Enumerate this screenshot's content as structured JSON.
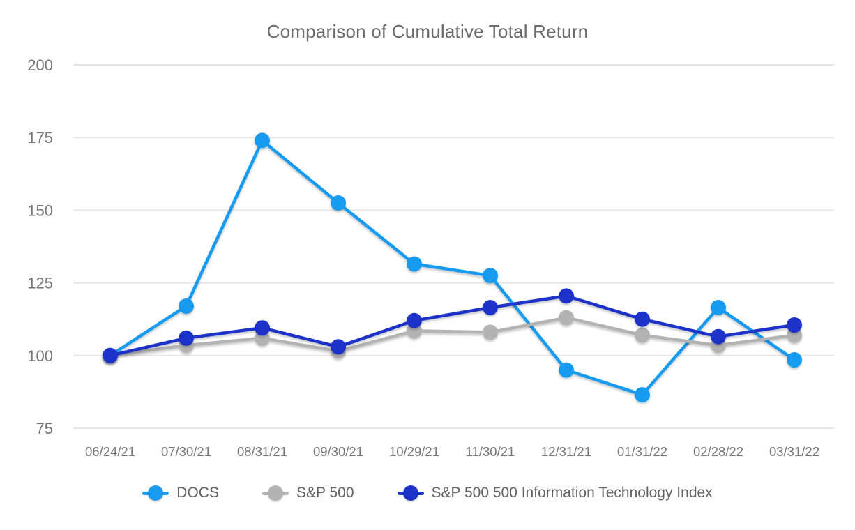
{
  "title": "Comparison of Cumulative Total Return",
  "colors": {
    "background": "#ffffff",
    "title_text": "#6b6b6b",
    "axis_text": "#757575",
    "legend_text": "#616161",
    "gridline": "#e6e6e6",
    "docs_blue": "#189bf0",
    "sp500_gray": "#b3b3b3",
    "it_index_blue": "#1c32c9"
  },
  "chart_data": {
    "type": "line",
    "title": "Comparison of Cumulative Total Return",
    "xlabel": "",
    "ylabel": "",
    "ylim": [
      75,
      200
    ],
    "yticks": [
      75,
      100,
      125,
      150,
      175,
      200
    ],
    "grid": "horizontal",
    "legend_position": "bottom",
    "categories": [
      "06/24/21",
      "07/30/21",
      "08/31/21",
      "09/30/21",
      "10/29/21",
      "11/30/21",
      "12/31/21",
      "01/31/22",
      "02/28/22",
      "03/31/22"
    ],
    "series": [
      {
        "name": "DOCS",
        "slug": "docs",
        "color": "#189bf0",
        "values": [
          100,
          117,
          174,
          152.5,
          131.5,
          127.5,
          95,
          86.5,
          116.5,
          98.5
        ]
      },
      {
        "name": "S&P 500",
        "slug": "sp500",
        "color": "#b3b3b3",
        "values": [
          100,
          103.5,
          106,
          101.5,
          108.5,
          108,
          113,
          107,
          103.5,
          107
        ]
      },
      {
        "name": "S&P 500 500 Information Technology Index",
        "slug": "sp500-it-index",
        "color": "#1c32c9",
        "values": [
          100,
          106,
          109.5,
          103,
          112,
          116.5,
          120.5,
          112.5,
          106.5,
          110.5
        ]
      }
    ]
  }
}
